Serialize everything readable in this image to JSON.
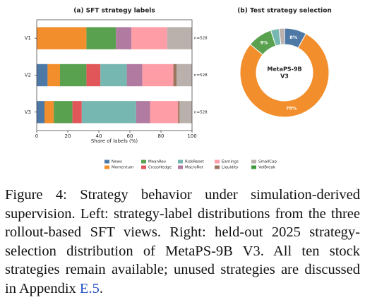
{
  "chart_data": [
    {
      "type": "stacked-barh",
      "title": "(a) SFT strategy labels",
      "categories": [
        "V1",
        "V2",
        "V3"
      ],
      "series": [
        {
          "name": "News",
          "color": "#4e79a7",
          "values": [
            0,
            7,
            5
          ]
        },
        {
          "name": "Momentum",
          "color": "#f28e2b",
          "values": [
            32,
            8,
            6
          ]
        },
        {
          "name": "MeanRev",
          "color": "#59a14f",
          "values": [
            19,
            17,
            12
          ]
        },
        {
          "name": "CrossHedge",
          "color": "#e15759",
          "values": [
            0,
            9,
            6
          ]
        },
        {
          "name": "RiskReset",
          "color": "#76b7b2",
          "values": [
            0,
            17,
            35
          ]
        },
        {
          "name": "MacroRot",
          "color": "#b07aa1",
          "values": [
            10,
            10,
            9
          ]
        },
        {
          "name": "Earnings",
          "color": "#ff9da7",
          "values": [
            23,
            20,
            18
          ]
        },
        {
          "name": "Liquidity",
          "color": "#9c755f",
          "values": [
            0,
            2,
            1
          ]
        },
        {
          "name": "SmallCap",
          "color": "#bab0ac",
          "values": [
            16,
            10,
            8
          ]
        },
        {
          "name": "VolBreak",
          "color": "#3f9a3c",
          "values": [
            0,
            0,
            0
          ]
        }
      ],
      "annotations": [
        "n=528",
        "n=528",
        "n=528"
      ],
      "xlim": [
        0,
        100
      ],
      "xticks": [
        0,
        20,
        40,
        60,
        80,
        100
      ],
      "xlabel": "Share of labels (%)"
    },
    {
      "type": "donut",
      "title": "(b) Test strategy selection",
      "categories": [
        "News",
        "Momentum",
        "MeanRev",
        "RiskReset",
        "SmallCap"
      ],
      "colors": [
        "#4e79a7",
        "#f28e2b",
        "#59a14f",
        "#76b7b2",
        "#bab0ac"
      ],
      "values": [
        8,
        78,
        9,
        3,
        2
      ],
      "value_labels": [
        "8%",
        "78%",
        "9%",
        null,
        null
      ],
      "center_text": [
        "MetaPS-9B",
        "V3"
      ]
    }
  ],
  "caption": {
    "text": "Figure 4: Strategy behavior under simulation-derived supervision. Left: strategy-label distributions from the three rollout-based SFT views. Right: held-out 2025 strategy-selection distribution of MetaPS-9B V3. All ten stock strategies remain available; unused strategies are discussed in Appendix ",
    "link": "E.5",
    "end": "."
  }
}
